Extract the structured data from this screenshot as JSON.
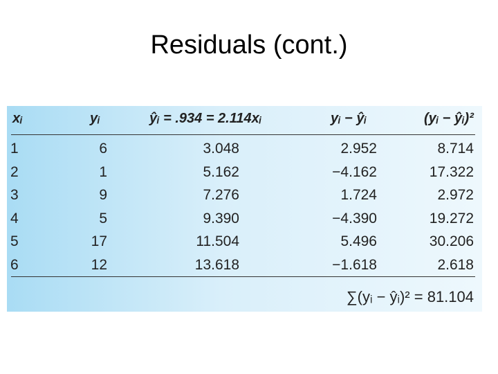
{
  "title": "Residuals (cont.)",
  "table": {
    "header": [
      "xᵢ",
      "yᵢ",
      "ŷᵢ = .934 = 2.114xᵢ",
      "yᵢ − ŷᵢ",
      "(yᵢ − ŷᵢ)²"
    ],
    "rows": [
      [
        "1",
        "6",
        "3.048",
        "2.952",
        "8.714"
      ],
      [
        "2",
        "1",
        "5.162",
        "−4.162",
        "17.322"
      ],
      [
        "3",
        "9",
        "7.276",
        "1.724",
        "2.972"
      ],
      [
        "4",
        "5",
        "9.390",
        "−4.390",
        "19.272"
      ],
      [
        "5",
        "17",
        "11.504",
        "5.496",
        "30.206"
      ],
      [
        "6",
        "12",
        "13.618",
        "−1.618",
        "2.618"
      ]
    ],
    "footer": "∑(yᵢ − ŷᵢ)² = 81.104"
  }
}
